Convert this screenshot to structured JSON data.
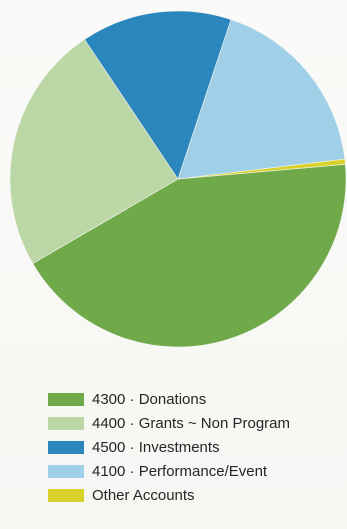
{
  "chart_data": {
    "type": "pie",
    "title": "",
    "legend_position": "bottom",
    "slices": [
      {
        "label": "4300 · Donations",
        "value": 43.0,
        "color": "#6fa94a"
      },
      {
        "label": "4400 · Grants ~ Non Program",
        "value": 24.0,
        "color": "#bcd7a6"
      },
      {
        "label": "4500 · Investments",
        "value": 14.5,
        "color": "#2b86bd"
      },
      {
        "label": "4100 · Performance/Event",
        "value": 18.0,
        "color": "#9fd0e8"
      },
      {
        "label": "Other Accounts",
        "value": 0.5,
        "color": "#d9d22b"
      }
    ]
  },
  "legend": {
    "items": [
      {
        "label": "4300 · Donations",
        "color": "#6fa94a"
      },
      {
        "label": "4400 · Grants ~ Non Program",
        "color": "#bcd7a6"
      },
      {
        "label": "4500 · Investments",
        "color": "#2b86bd"
      },
      {
        "label": "4100 · Performance/Event",
        "color": "#9fd0e8"
      },
      {
        "label": "Other Accounts",
        "color": "#d9d22b"
      }
    ]
  }
}
